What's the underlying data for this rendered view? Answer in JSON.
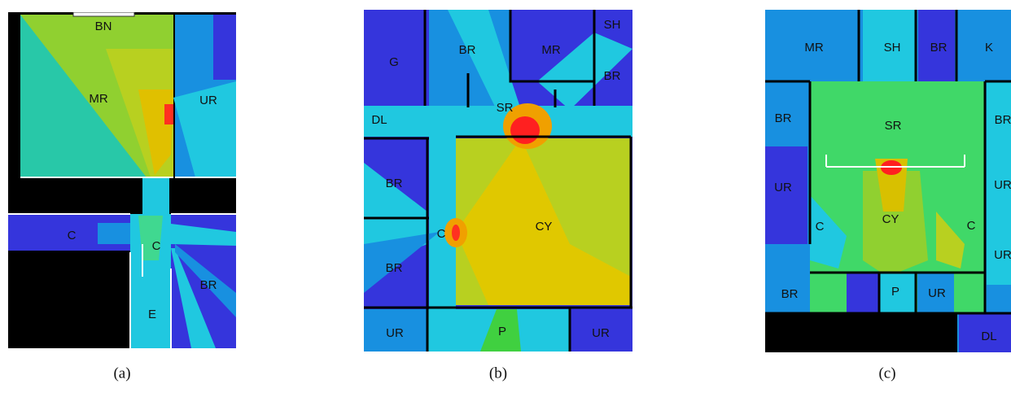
{
  "panels": [
    {
      "caption": "(a)",
      "labels": [
        "BN",
        "MR",
        "UR",
        "C",
        "C",
        "BR",
        "E"
      ]
    },
    {
      "caption": "(b)",
      "labels": [
        "G",
        "BR",
        "MR",
        "SH",
        "BR",
        "DL",
        "SR",
        "BR",
        "C",
        "CY",
        "BR",
        "UR",
        "P",
        "UR"
      ]
    },
    {
      "caption": "(c)",
      "labels": [
        "MR",
        "SH",
        "BR",
        "K",
        "BR",
        "SR",
        "BR",
        "UR",
        "UR",
        "CY",
        "C",
        "C",
        "UR",
        "BR",
        "P",
        "UR",
        "DL"
      ]
    }
  ]
}
